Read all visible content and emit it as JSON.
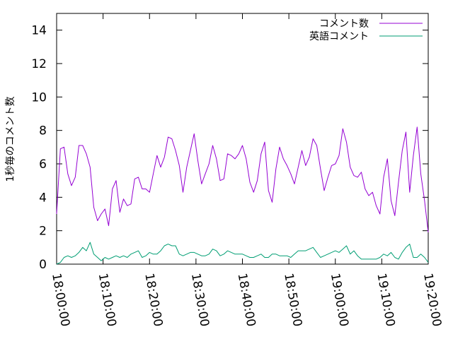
{
  "chart_data": {
    "type": "line",
    "title": "",
    "xlabel": "",
    "ylabel": "1秒毎のコメント数",
    "xlim": [
      "18:00:00",
      "19:20:00"
    ],
    "ylim": [
      0,
      15
    ],
    "grid": false,
    "legend_position": "top-right",
    "x_tick_labels": [
      "18:00:00",
      "18:10:00",
      "18:20:00",
      "18:30:00",
      "18:40:00",
      "18:50:00",
      "19:00:00",
      "19:10:00",
      "19:20:00"
    ],
    "y_tick_labels": [
      "0",
      "2",
      "4",
      "6",
      "8",
      "10",
      "12",
      "14"
    ],
    "x_step_minutes": 0.8,
    "series": [
      {
        "name": "コメント数",
        "color": "#9400d3",
        "values": [
          3.0,
          6.9,
          7.0,
          5.4,
          4.7,
          5.2,
          7.1,
          7.1,
          6.6,
          5.8,
          3.4,
          2.6,
          3.0,
          3.3,
          2.3,
          4.5,
          5.0,
          3.1,
          3.9,
          3.5,
          3.6,
          5.1,
          5.2,
          4.5,
          4.5,
          4.3,
          5.4,
          6.5,
          5.8,
          6.4,
          7.6,
          7.5,
          6.8,
          5.9,
          4.3,
          5.8,
          6.8,
          7.8,
          6.2,
          4.8,
          5.4,
          6.0,
          7.1,
          6.3,
          5.0,
          5.1,
          6.6,
          6.5,
          6.3,
          6.6,
          7.1,
          6.3,
          4.9,
          4.3,
          5.0,
          6.6,
          7.3,
          4.4,
          3.7,
          5.7,
          7.0,
          6.3,
          5.9,
          5.4,
          4.8,
          5.8,
          6.8,
          5.9,
          6.4,
          7.5,
          7.1,
          5.7,
          4.4,
          5.2,
          5.9,
          6.0,
          6.5,
          8.1,
          7.3,
          5.8,
          5.3,
          5.2,
          5.5,
          4.5,
          4.1,
          4.3,
          3.5,
          3.0,
          5.2,
          6.3,
          3.8,
          2.9,
          4.9,
          6.8,
          7.9,
          4.3,
          6.5,
          8.2,
          5.4,
          3.8,
          1.9
        ]
      },
      {
        "name": "英語コメント",
        "color": "#009e73",
        "values": [
          0.0,
          0.1,
          0.4,
          0.5,
          0.4,
          0.5,
          0.7,
          1.0,
          0.8,
          1.3,
          0.6,
          0.4,
          0.2,
          0.4,
          0.3,
          0.4,
          0.5,
          0.4,
          0.5,
          0.4,
          0.6,
          0.7,
          0.8,
          0.4,
          0.5,
          0.7,
          0.6,
          0.6,
          0.8,
          1.1,
          1.2,
          1.1,
          1.1,
          0.6,
          0.5,
          0.6,
          0.7,
          0.7,
          0.6,
          0.5,
          0.5,
          0.6,
          0.9,
          0.8,
          0.5,
          0.6,
          0.8,
          0.7,
          0.6,
          0.6,
          0.6,
          0.5,
          0.4,
          0.4,
          0.5,
          0.6,
          0.4,
          0.4,
          0.6,
          0.6,
          0.5,
          0.5,
          0.5,
          0.4,
          0.6,
          0.8,
          0.8,
          0.8,
          0.9,
          1.0,
          0.7,
          0.4,
          0.5,
          0.6,
          0.7,
          0.8,
          0.7,
          0.9,
          1.1,
          0.6,
          0.8,
          0.5,
          0.3,
          0.3,
          0.3,
          0.3,
          0.3,
          0.4,
          0.6,
          0.5,
          0.7,
          0.4,
          0.3,
          0.7,
          1.0,
          1.2,
          0.4,
          0.4,
          0.6,
          0.4,
          0.1
        ]
      }
    ]
  }
}
